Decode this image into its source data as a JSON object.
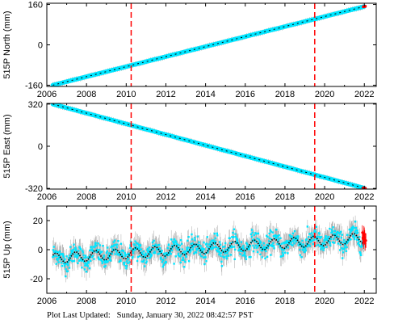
{
  "footer": {
    "label": "Plot Last Updated:",
    "timestamp": "Sunday, January 30, 2022 08:42:57 PST"
  },
  "colors": {
    "series": "#00e5ff",
    "errorbar": "#a9a9a9",
    "trend": "#000000",
    "event_line": "#ff0000",
    "recent": "#ff0000"
  },
  "chart_data": [
    {
      "type": "scatter",
      "ylabel": "515P North (mm)",
      "xlabel": "",
      "xlim": [
        2006.0,
        2022.6
      ],
      "ylim": [
        -165,
        165
      ],
      "x_ticks": [
        2006,
        2008,
        2010,
        2012,
        2014,
        2016,
        2018,
        2020,
        2022
      ],
      "y_ticks": [
        -160,
        0,
        160
      ],
      "series": [
        {
          "x": [
            2006.3,
            2022.0
          ],
          "y": [
            -160,
            152
          ]
        }
      ],
      "event_lines_x": [
        2010.25,
        2019.5
      ],
      "grid": false
    },
    {
      "type": "scatter",
      "ylabel": "515P East (mm)",
      "xlabel": "",
      "xlim": [
        2006.0,
        2022.6
      ],
      "ylim": [
        -325,
        325
      ],
      "x_ticks": [
        2006,
        2008,
        2010,
        2012,
        2014,
        2016,
        2018,
        2020,
        2022
      ],
      "y_ticks": [
        -320,
        0,
        320
      ],
      "series": [
        {
          "x": [
            2006.3,
            2022.0
          ],
          "y": [
            320,
            -318
          ]
        }
      ],
      "event_lines_x": [
        2010.25,
        2019.5
      ],
      "grid": false
    },
    {
      "type": "scatter",
      "ylabel": "515P Up (mm)",
      "xlabel": "",
      "xlim": [
        2006.0,
        2022.6
      ],
      "ylim": [
        -30,
        30
      ],
      "x_ticks": [
        2006,
        2008,
        2010,
        2012,
        2014,
        2016,
        2018,
        2020,
        2022
      ],
      "y_ticks": [
        -20,
        0,
        20
      ],
      "series": [
        {
          "x": [
            2006.3,
            2022.0
          ],
          "y": [
            -6,
            8
          ],
          "seasonal_amplitude": 3.5,
          "scatter_sd": 6
        }
      ],
      "event_lines_x": [
        2010.25,
        2019.5
      ],
      "grid": false
    }
  ]
}
